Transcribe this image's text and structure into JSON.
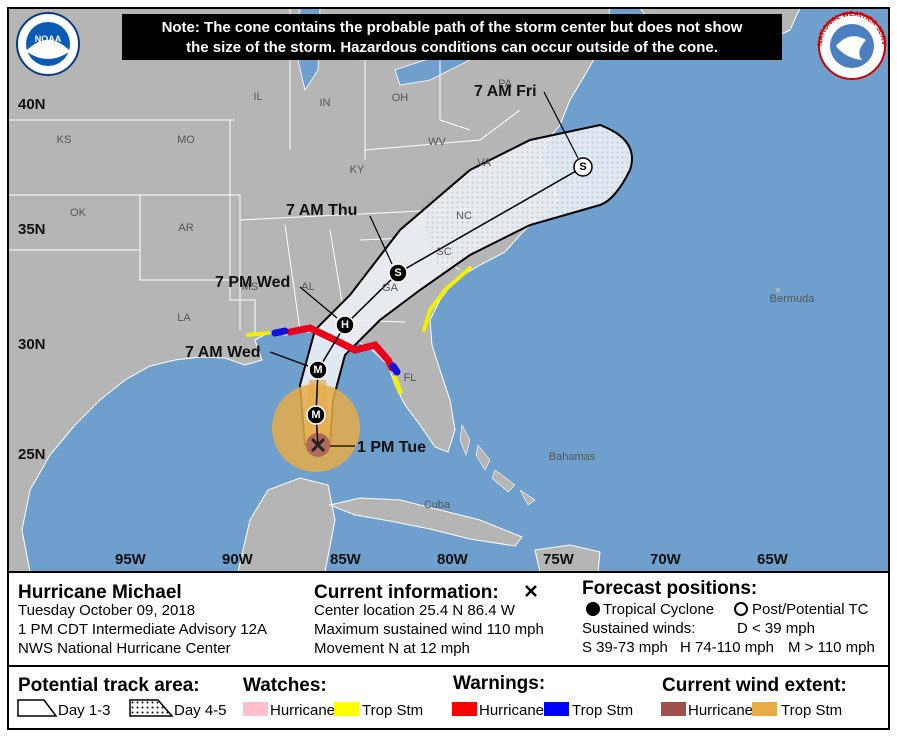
{
  "note": [
    "Note: The cone contains the probable path of the storm center but does not show",
    "the size of the storm. Hazardous conditions can occur outside of the cone."
  ],
  "logos": {
    "noaa": "NOAA",
    "nws": "NATIONAL WEATHER SERVICE"
  },
  "map": {
    "latitudes": [
      "40N",
      "35N",
      "30N",
      "25N"
    ],
    "longitudes": [
      "95W",
      "90W",
      "85W",
      "80W",
      "75W",
      "70W",
      "65W"
    ],
    "places": [
      "KS",
      "MO",
      "IL",
      "IN",
      "OH",
      "PA",
      "WV",
      "VA",
      "KY",
      "NC",
      "SC",
      "GA",
      "AL",
      "MS",
      "LA",
      "AR",
      "OK",
      "FL",
      "Bermuda",
      "Bahamas",
      "Cuba"
    ],
    "points": [
      {
        "time": "1 PM Tue"
      },
      {
        "symbol": "M"
      },
      {
        "time": "7 AM Wed",
        "symbol": "M"
      },
      {
        "time": "7 PM Wed",
        "symbol": "H"
      },
      {
        "time": "7 AM Thu",
        "symbol": "S"
      },
      {
        "time": "7 AM Fri",
        "symbol": "S"
      }
    ]
  },
  "storm": {
    "name": "Hurricane Michael",
    "date": "Tuesday October 09, 2018",
    "advisory": "1 PM CDT Intermediate Advisory 12A",
    "office": "NWS National Hurricane Center"
  },
  "current": {
    "heading": "Current information:",
    "lines": [
      "Center location 25.4 N 86.4 W",
      "Maximum sustained wind 110 mph",
      "Movement N at 12 mph"
    ]
  },
  "forecast": {
    "heading": "Forecast positions:",
    "tropical": "Tropical Cyclone",
    "post": "Post/Potential TC",
    "sustained": "Sustained winds:",
    "d": "D < 39 mph",
    "s": "S 39-73 mph",
    "h": "H 74-110 mph",
    "m": "M > 110 mph"
  },
  "legend": {
    "track": "Potential track area:",
    "day13": "Day 1-3",
    "day45": "Day 4-5",
    "watches": "Watches:",
    "watch_hurricane": "Hurricane",
    "watch_ts": "Trop Stm",
    "warnings": "Warnings:",
    "warn_hurricane": "Hurricane",
    "warn_ts": "Trop Stm",
    "wind": "Current wind extent:",
    "wind_hurricane": "Hurricane",
    "wind_ts": "Trop Stm"
  }
}
